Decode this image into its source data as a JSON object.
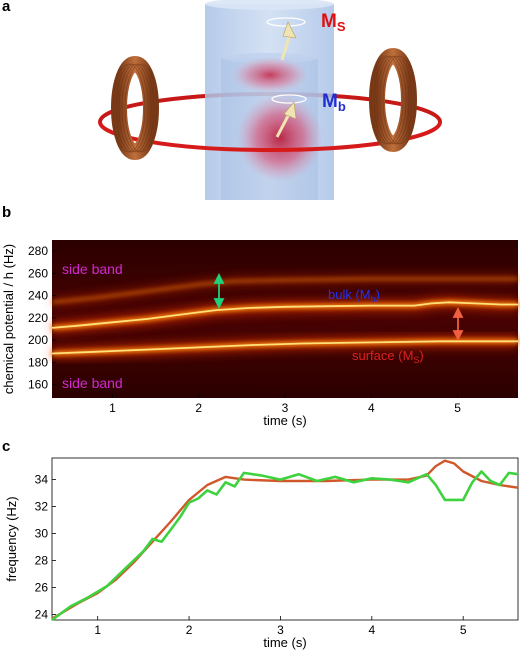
{
  "panels": {
    "a": {
      "letter": "a",
      "label_ms": "M",
      "label_ms_sub": "S",
      "label_mb": "M",
      "label_mb_sub": "b",
      "colors": {
        "ring": "#d61a1a",
        "coil": "#a4592c",
        "cylinder": "#bcd1ee",
        "cloud": "#c8304e",
        "ms_text": "#e01010",
        "mb_text": "#1f2fd0"
      }
    },
    "b": {
      "letter": "b",
      "annotations": {
        "side_band_top": "side band",
        "side_band_bottom": "side band",
        "bulk": "bulk (M",
        "bulk_sub": "b",
        "bulk_close": ")",
        "surface": "surface (M",
        "surface_sub": "S",
        "surface_close": ")"
      },
      "colors": {
        "background": "#3a0000",
        "trace": "#ffe07a",
        "side_band_text": "#d228d2",
        "bulk_text": "#2233ee",
        "surface_text": "#e02020",
        "green_arrow": "#1fd07a",
        "red_arrow": "#f06040"
      }
    },
    "c": {
      "letter": "c"
    }
  },
  "chart_data": [
    {
      "type": "heatmap",
      "xlabel": "time (s)",
      "ylabel": "chemical potential / h (Hz)",
      "xlim": [
        0.3,
        5.7
      ],
      "ylim": [
        148,
        290
      ],
      "xticks": [
        1,
        2,
        3,
        4,
        5
      ],
      "yticks": [
        160,
        180,
        200,
        220,
        240,
        260,
        280
      ],
      "series": [
        {
          "name": "bulk",
          "x": [
            0.3,
            0.6,
            1.0,
            1.4,
            1.8,
            2.2,
            2.6,
            3.0,
            3.5,
            4.0,
            4.5,
            4.7,
            4.9,
            5.2,
            5.5,
            5.7
          ],
          "y": [
            211,
            213,
            216,
            219,
            223,
            227,
            229,
            230,
            230.5,
            231,
            231,
            233,
            234,
            233,
            232,
            232
          ]
        },
        {
          "name": "surface",
          "x": [
            0.3,
            0.8,
            1.4,
            2.0,
            2.6,
            3.2,
            4.0,
            4.8,
            5.7
          ],
          "y": [
            188,
            189.5,
            191.5,
            193.5,
            195.5,
            197,
            198,
            199,
            199
          ]
        },
        {
          "name": "side band",
          "x": [
            0.3,
            0.8,
            1.4,
            2.0,
            2.4,
            3.0,
            4.0,
            5.0,
            5.7
          ],
          "y": [
            234,
            238,
            244,
            250,
            253,
            254,
            255,
            255,
            255
          ]
        }
      ]
    },
    {
      "type": "line",
      "xlabel": "time (s)",
      "ylabel": "frequency (Hz)",
      "xlim": [
        0.5,
        5.6
      ],
      "ylim": [
        23.6,
        35.6
      ],
      "xticks": [
        1,
        2,
        3,
        4,
        5
      ],
      "yticks": [
        24,
        26,
        28,
        30,
        32,
        34
      ],
      "series": [
        {
          "color": "#d0582a",
          "x": [
            0.5,
            0.8,
            1.0,
            1.2,
            1.4,
            1.6,
            1.8,
            2.0,
            2.2,
            2.4,
            2.6,
            3.0,
            3.5,
            4.0,
            4.4,
            4.6,
            4.7,
            4.8,
            4.9,
            5.0,
            5.2,
            5.4,
            5.6
          ],
          "y": [
            23.7,
            24.9,
            25.6,
            26.6,
            27.9,
            29.4,
            30.9,
            32.5,
            33.6,
            34.2,
            34.0,
            33.9,
            33.9,
            34.0,
            34.0,
            34.3,
            35.0,
            35.4,
            35.2,
            34.6,
            33.9,
            33.6,
            33.4
          ]
        },
        {
          "color": "#3ed23e",
          "x": [
            0.5,
            0.7,
            0.9,
            1.1,
            1.3,
            1.5,
            1.6,
            1.7,
            1.8,
            1.9,
            2.0,
            2.1,
            2.2,
            2.3,
            2.4,
            2.5,
            2.6,
            2.8,
            3.0,
            3.2,
            3.4,
            3.6,
            3.8,
            4.0,
            4.2,
            4.4,
            4.6,
            4.7,
            4.8,
            5.0,
            5.1,
            5.2,
            5.3,
            5.4,
            5.5,
            5.6
          ],
          "y": [
            23.6,
            24.6,
            25.3,
            26.1,
            27.4,
            28.7,
            29.6,
            29.4,
            30.3,
            31.2,
            32.3,
            32.6,
            33.2,
            32.9,
            33.8,
            33.5,
            34.5,
            34.3,
            34.0,
            34.4,
            33.9,
            34.2,
            33.8,
            34.1,
            34.0,
            33.8,
            34.4,
            33.6,
            32.5,
            32.5,
            33.8,
            34.6,
            33.9,
            33.6,
            34.5,
            34.4
          ]
        }
      ]
    }
  ]
}
